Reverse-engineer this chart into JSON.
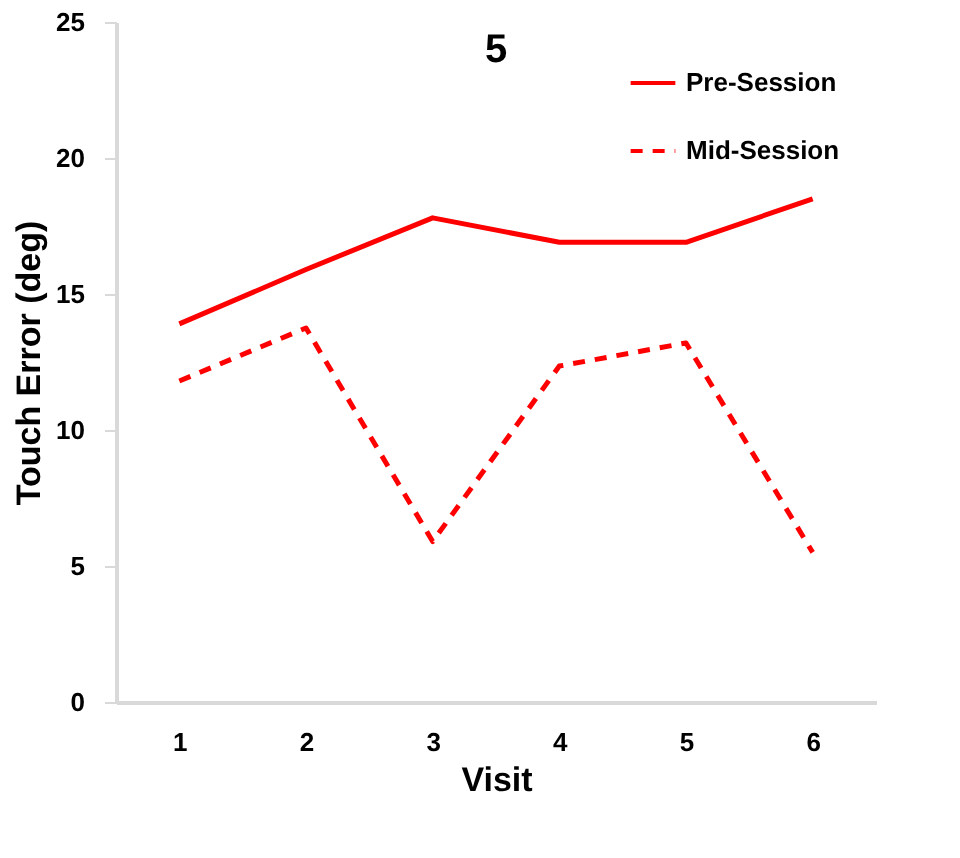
{
  "chart_data": {
    "type": "line",
    "title": "5",
    "xlabel": "Visit",
    "ylabel": "Touch Error (deg)",
    "categories": [
      "1",
      "2",
      "3",
      "4",
      "5",
      "6"
    ],
    "series": [
      {
        "name": "Pre-Session",
        "color": "#ff0000",
        "line_style": "solid",
        "values": [
          13.9,
          15.9,
          17.8,
          16.9,
          16.9,
          18.5
        ]
      },
      {
        "name": "Mid-Session",
        "color": "#ff0000",
        "line_style": "dashed",
        "values": [
          11.8,
          13.75,
          5.9,
          12.35,
          13.2,
          5.5
        ]
      }
    ],
    "ylim": [
      0,
      25
    ],
    "yticks": [
      0,
      5,
      10,
      15,
      20,
      25
    ],
    "grid": false,
    "legend": "top right",
    "marker": "none"
  }
}
